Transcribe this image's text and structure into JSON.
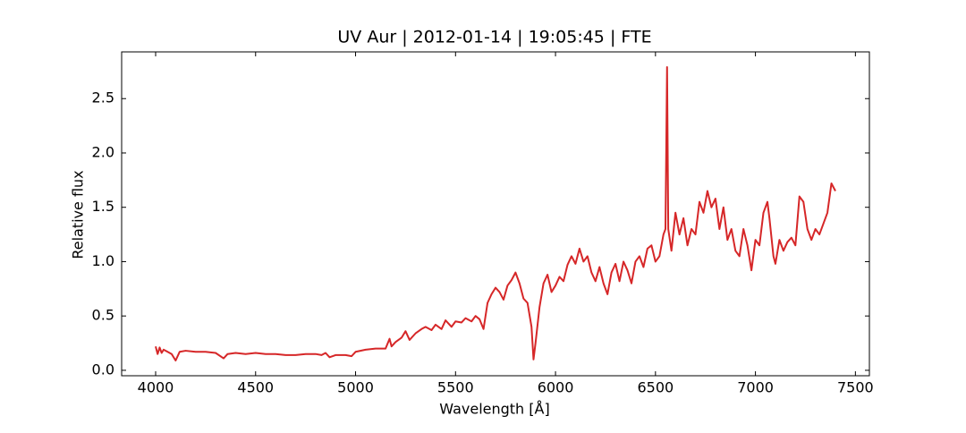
{
  "chart_data": {
    "type": "line",
    "title": "UV Aur | 2012-01-14 | 19:05:45 | FTE",
    "x_label": "Wavelength [Å]",
    "y_label": "Relative flux",
    "xlim": [
      3830,
      7570
    ],
    "ylim": [
      -0.05,
      2.93
    ],
    "xticks": [
      4000,
      4500,
      5000,
      5500,
      6000,
      6500,
      7000,
      7500
    ],
    "yticks": [
      {
        "value": 0,
        "label": "0.0"
      },
      0.5,
      {
        "value": 1,
        "label": "1.0"
      },
      1.5,
      {
        "value": 2,
        "label": "2.0"
      },
      2.5
    ],
    "grid": false,
    "series": [
      {
        "color": "#d62728",
        "x": [
          4000,
          4010,
          4020,
          4030,
          4040,
          4060,
          4080,
          4100,
          4120,
          4150,
          4200,
          4250,
          4300,
          4340,
          4360,
          4400,
          4450,
          4500,
          4550,
          4600,
          4650,
          4700,
          4750,
          4800,
          4830,
          4850,
          4870,
          4900,
          4950,
          4980,
          5000,
          5050,
          5100,
          5150,
          5170,
          5180,
          5200,
          5230,
          5250,
          5270,
          5300,
          5330,
          5350,
          5380,
          5400,
          5430,
          5450,
          5480,
          5500,
          5530,
          5550,
          5580,
          5600,
          5620,
          5640,
          5660,
          5680,
          5700,
          5720,
          5740,
          5760,
          5780,
          5800,
          5820,
          5840,
          5860,
          5880,
          5890,
          5900,
          5920,
          5940,
          5960,
          5980,
          6000,
          6020,
          6040,
          6060,
          6080,
          6100,
          6120,
          6140,
          6160,
          6180,
          6200,
          6220,
          6240,
          6260,
          6280,
          6300,
          6320,
          6340,
          6360,
          6380,
          6400,
          6420,
          6440,
          6460,
          6480,
          6500,
          6520,
          6540,
          6550,
          6558,
          6564,
          6580,
          6600,
          6620,
          6640,
          6660,
          6680,
          6700,
          6720,
          6740,
          6760,
          6780,
          6800,
          6820,
          6840,
          6860,
          6880,
          6900,
          6920,
          6940,
          6960,
          6980,
          7000,
          7020,
          7040,
          7060,
          7070,
          7090,
          7100,
          7120,
          7140,
          7160,
          7180,
          7200,
          7220,
          7240,
          7260,
          7280,
          7300,
          7320,
          7340,
          7360,
          7380,
          7400
        ],
        "values": [
          0.22,
          0.15,
          0.21,
          0.16,
          0.19,
          0.17,
          0.15,
          0.09,
          0.17,
          0.18,
          0.17,
          0.17,
          0.16,
          0.11,
          0.15,
          0.16,
          0.15,
          0.16,
          0.15,
          0.15,
          0.14,
          0.14,
          0.15,
          0.15,
          0.14,
          0.16,
          0.12,
          0.14,
          0.14,
          0.13,
          0.17,
          0.19,
          0.2,
          0.2,
          0.29,
          0.22,
          0.26,
          0.3,
          0.36,
          0.28,
          0.34,
          0.38,
          0.4,
          0.37,
          0.42,
          0.38,
          0.46,
          0.4,
          0.45,
          0.44,
          0.48,
          0.45,
          0.5,
          0.47,
          0.38,
          0.62,
          0.7,
          0.76,
          0.72,
          0.65,
          0.78,
          0.83,
          0.9,
          0.8,
          0.66,
          0.62,
          0.4,
          0.1,
          0.25,
          0.58,
          0.8,
          0.88,
          0.72,
          0.78,
          0.86,
          0.82,
          0.97,
          1.05,
          0.98,
          1.12,
          1.0,
          1.05,
          0.9,
          0.82,
          0.95,
          0.8,
          0.7,
          0.9,
          0.98,
          0.82,
          1.0,
          0.92,
          0.8,
          1.0,
          1.05,
          0.95,
          1.12,
          1.15,
          1.0,
          1.05,
          1.25,
          1.3,
          2.79,
          1.3,
          1.1,
          1.45,
          1.25,
          1.4,
          1.15,
          1.3,
          1.25,
          1.55,
          1.45,
          1.65,
          1.5,
          1.58,
          1.3,
          1.5,
          1.2,
          1.3,
          1.1,
          1.05,
          1.3,
          1.15,
          0.92,
          1.2,
          1.15,
          1.45,
          1.55,
          1.4,
          1.05,
          0.98,
          1.2,
          1.1,
          1.18,
          1.22,
          1.15,
          1.6,
          1.55,
          1.3,
          1.2,
          1.3,
          1.25,
          1.35,
          1.45,
          1.72,
          1.65
        ]
      }
    ]
  }
}
